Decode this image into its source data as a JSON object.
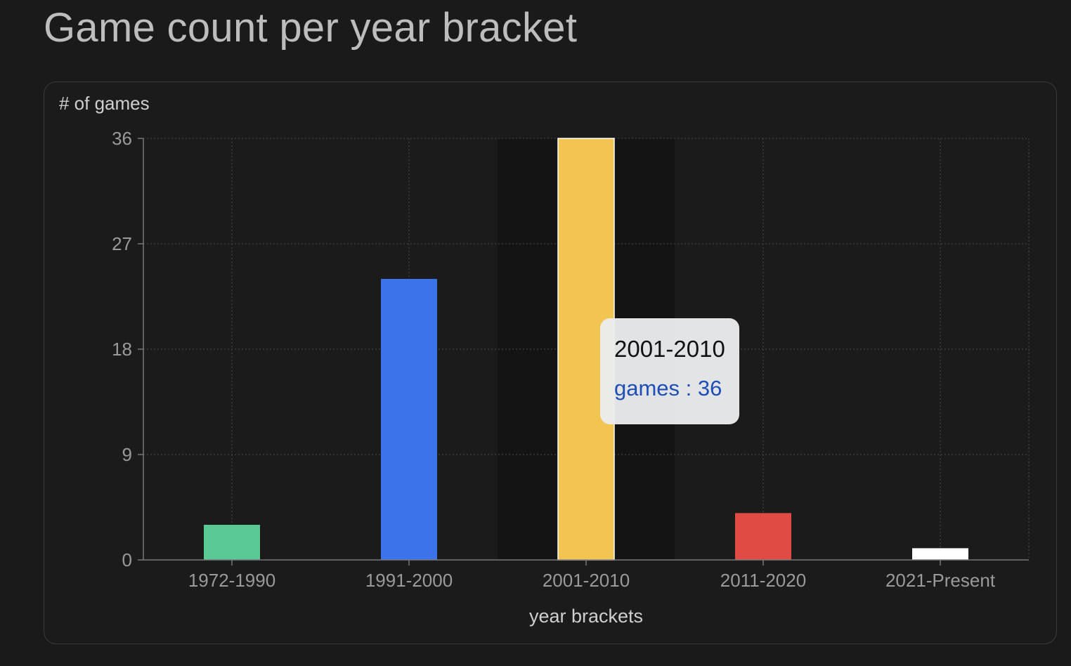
{
  "page": {
    "title": "Game count per year bracket"
  },
  "chart_data": {
    "type": "bar",
    "title": "Game count per year bracket",
    "xlabel": "year brackets",
    "ylabel": "# of games",
    "categories": [
      "1972-1990",
      "1991-2000",
      "2001-2010",
      "2011-2020",
      "2021-Present"
    ],
    "series": [
      {
        "name": "games",
        "values": [
          3,
          24,
          36,
          4,
          1
        ],
        "colors": [
          "#5ac994",
          "#3b74ea",
          "#f2c553",
          "#e04c44",
          "#ffffff"
        ]
      }
    ],
    "yticks": [
      0,
      9,
      18,
      27,
      36
    ],
    "ylim": [
      0,
      36
    ],
    "grid": true,
    "highlighted_category": "2001-2010"
  },
  "tooltip": {
    "category": "2001-2010",
    "value_text": "games : 36"
  }
}
